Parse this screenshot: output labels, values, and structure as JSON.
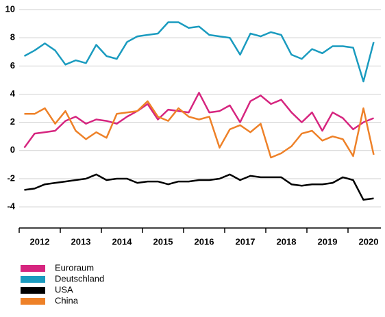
{
  "chart_data": {
    "type": "line",
    "x": [
      2012.125,
      2012.375,
      2012.625,
      2012.875,
      2013.125,
      2013.375,
      2013.625,
      2013.875,
      2014.125,
      2014.375,
      2014.625,
      2014.875,
      2015.125,
      2015.375,
      2015.625,
      2015.875,
      2016.125,
      2016.375,
      2016.625,
      2016.875,
      2017.125,
      2017.375,
      2017.625,
      2017.875,
      2018.125,
      2018.375,
      2018.625,
      2018.875,
      2019.125,
      2019.375,
      2019.625,
      2019.875,
      2020.125,
      2020.375,
      2020.625
    ],
    "series": [
      {
        "name": "Euroraum",
        "color": "#d6257f",
        "values": [
          0.2,
          1.2,
          1.3,
          1.4,
          2.1,
          2.4,
          1.9,
          2.2,
          2.1,
          1.9,
          2.4,
          2.8,
          3.3,
          2.2,
          2.9,
          2.8,
          2.7,
          4.1,
          2.7,
          2.8,
          3.2,
          2.0,
          3.5,
          3.9,
          3.3,
          3.6,
          2.7,
          2.0,
          2.7,
          1.4,
          2.7,
          2.3,
          1.5,
          2.0,
          2.3
        ]
      },
      {
        "name": "Deutschland",
        "color": "#1a9bbf",
        "values": [
          6.7,
          7.1,
          7.6,
          7.1,
          6.1,
          6.4,
          6.2,
          7.5,
          6.7,
          6.5,
          7.7,
          8.1,
          8.2,
          8.3,
          9.1,
          9.1,
          8.7,
          8.8,
          8.2,
          8.1,
          8.0,
          6.8,
          8.3,
          8.1,
          8.4,
          8.2,
          6.8,
          6.5,
          7.2,
          6.9,
          7.4,
          7.4,
          7.3,
          4.9,
          7.7
        ]
      },
      {
        "name": "USA",
        "color": "#000000",
        "values": [
          -2.8,
          -2.7,
          -2.4,
          -2.3,
          -2.2,
          -2.1,
          -2.0,
          -1.7,
          -2.1,
          -2.0,
          -2.0,
          -2.3,
          -2.2,
          -2.2,
          -2.4,
          -2.2,
          -2.2,
          -2.1,
          -2.1,
          -2.0,
          -1.7,
          -2.1,
          -1.8,
          -1.9,
          -1.9,
          -1.9,
          -2.4,
          -2.5,
          -2.4,
          -2.4,
          -2.3,
          -1.9,
          -2.1,
          -3.5,
          -3.4
        ]
      },
      {
        "name": "China",
        "color": "#ee8128",
        "values": [
          2.6,
          2.6,
          3.0,
          1.9,
          2.8,
          1.4,
          0.8,
          1.3,
          0.9,
          2.6,
          2.7,
          2.8,
          3.5,
          2.4,
          2.1,
          3.0,
          2.4,
          2.2,
          2.4,
          0.2,
          1.5,
          1.8,
          1.3,
          1.9,
          -0.5,
          -0.2,
          0.3,
          1.2,
          1.4,
          0.7,
          1.0,
          0.8,
          -0.4,
          3.0,
          -0.3
        ]
      }
    ],
    "xlim": [
      2012,
      2020.8
    ],
    "xticks": [
      {
        "value": 2012.5,
        "label": "2012"
      },
      {
        "value": 2013.5,
        "label": "2013"
      },
      {
        "value": 2014.5,
        "label": "2014"
      },
      {
        "value": 2015.5,
        "label": "2015"
      },
      {
        "value": 2016.5,
        "label": "2016"
      },
      {
        "value": 2017.5,
        "label": "2017"
      },
      {
        "value": 2018.5,
        "label": "2018"
      },
      {
        "value": 2019.5,
        "label": "2019"
      },
      {
        "value": 2020.5,
        "label": "2020"
      }
    ],
    "ylim": [
      -5.5,
      10
    ],
    "yticks": [
      -4,
      -2,
      0,
      2,
      4,
      6,
      8,
      10
    ],
    "grid": true
  }
}
